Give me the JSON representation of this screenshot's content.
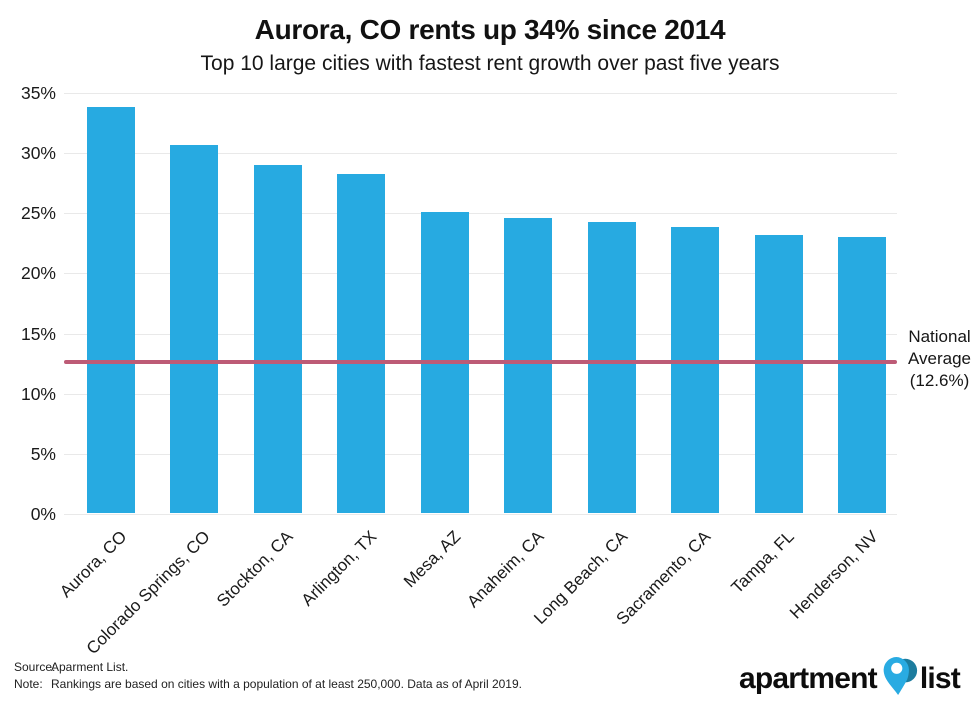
{
  "chart_data": {
    "type": "bar",
    "title": "Aurora, CO rents up 34% since 2014",
    "subtitle": "Top 10 large cities with fastest rent growth over past five years",
    "categories": [
      "Aurora, CO",
      "Colorado Springs, CO",
      "Stockton, CA",
      "Arlington, TX",
      "Mesa, AZ",
      "Anaheim, CA",
      "Long Beach, CA",
      "Sacramento, CA",
      "Tampa, FL",
      "Henderson, NV"
    ],
    "values": [
      33.8,
      30.7,
      29.0,
      28.3,
      25.1,
      24.6,
      24.3,
      23.9,
      23.2,
      23.0
    ],
    "xlabel": "",
    "ylabel": "",
    "ylim": [
      0,
      35
    ],
    "ytick_labels": [
      "35%",
      "30%",
      "25%",
      "20%",
      "15%",
      "10%",
      "5%",
      "0%"
    ],
    "grid": true,
    "legend": "none",
    "bar_color": "#27aae1",
    "reference_line": {
      "value": 12.6,
      "color": "#bd5b76",
      "label_lines": [
        "National",
        "Average",
        "(12.6%)"
      ]
    }
  },
  "footer": {
    "source_label": "Source:",
    "source_text": "Aparment List.",
    "note_label": "Note:",
    "note_text": "Rankings are based on cities with a population of at least 250,000. Data as of April 2019."
  },
  "logo": {
    "left": "apartment",
    "right": "list",
    "pin_light_color": "#29abe2",
    "pin_dark_color": "#1c7c9e"
  }
}
